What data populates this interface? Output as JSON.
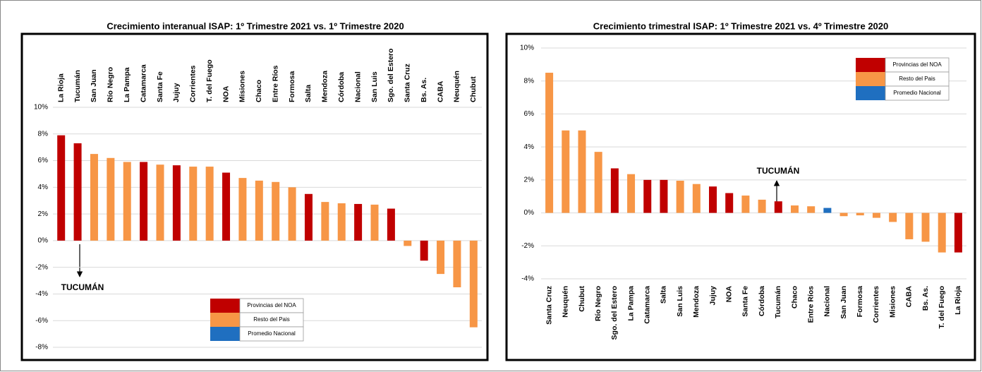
{
  "chart_data": [
    {
      "type": "bar",
      "title": "Crecimiento interanual ISAP: 1º Trimestre 2021 vs. 1º Trimestre 2020",
      "categories": [
        "La Rioja",
        "Tucumán",
        "San Juan",
        "Río Negro",
        "La Pampa",
        "Catamarca",
        "Santa Fe",
        "Jujuy",
        "Corrientes",
        "T. del Fuego",
        "NOA",
        "Misiones",
        "Chaco",
        "Entre Ríos",
        "Formosa",
        "Salta",
        "Mendoza",
        "Córdoba",
        "Nacional",
        "San Luis",
        "Sgo. del Estero",
        "Santa Cruz",
        "Bs. As.",
        "CABA",
        "Neuquén",
        "Chubut"
      ],
      "values": [
        7.9,
        7.3,
        6.5,
        6.2,
        5.9,
        5.9,
        5.7,
        5.65,
        5.55,
        5.55,
        5.1,
        4.7,
        4.5,
        4.4,
        4.0,
        3.5,
        2.9,
        2.8,
        2.75,
        2.7,
        2.4,
        -0.4,
        -1.5,
        -2.5,
        -3.5,
        -6.5
      ],
      "colors": [
        "#c00000",
        "#c00000",
        "#f79646",
        "#f79646",
        "#f79646",
        "#c00000",
        "#f79646",
        "#c00000",
        "#f79646",
        "#f79646",
        "#c00000",
        "#f79646",
        "#f79646",
        "#f79646",
        "#f79646",
        "#c00000",
        "#f79646",
        "#f79646",
        "#c00000",
        "#f79646",
        "#c00000",
        "#f79646",
        "#c00000",
        "#f79646",
        "#f79646",
        "#f79646"
      ],
      "ylim": [
        -8,
        10
      ],
      "yticks": [
        {
          "value": -8,
          "label": "-8%"
        },
        {
          "value": -6,
          "label": "-6%"
        },
        {
          "value": -4,
          "label": "-4%"
        },
        {
          "value": -2,
          "label": "-2%"
        },
        {
          "value": 0,
          "label": "0%"
        },
        {
          "value": 2,
          "label": "2%"
        },
        {
          "value": 4,
          "label": "4%"
        },
        {
          "value": 6,
          "label": "6%"
        },
        {
          "value": 8,
          "label": "8%"
        },
        {
          "value": 10,
          "label": "10%"
        }
      ],
      "grid": true,
      "category_label_position": "top",
      "legend_position": "bottom-center",
      "legend": [
        {
          "name": "Provincias del NOA",
          "color": "#c00000"
        },
        {
          "name": "Resto del Pais",
          "color": "#f79646"
        },
        {
          "name": "Promedio Nacional",
          "color": "#1f6fc0"
        }
      ],
      "annotation": "TUCUMÁN"
    },
    {
      "type": "bar",
      "title": "Crecimiento trimestral ISAP: 1º Trimestre 2021 vs. 4º Trimestre 2020",
      "categories": [
        "Santa Cruz",
        "Neuquén",
        "Chubut",
        "Río Negro",
        "Sgo. del Estero",
        "La Pampa",
        "Catamarca",
        "Salta",
        "San Luis",
        "Mendoza",
        "Jujuy",
        "NOA",
        "Santa Fe",
        "Córdoba",
        "Tucumán",
        "Chaco",
        "Entre Ríos",
        "Nacional",
        "San Juan",
        "Formosa",
        "Corrientes",
        "Misiones",
        "CABA",
        "Bs. As.",
        "T. del Fuego",
        "La Rioja"
      ],
      "values": [
        8.5,
        5.0,
        5.0,
        3.7,
        2.7,
        2.35,
        2.0,
        2.0,
        1.95,
        1.75,
        1.6,
        1.2,
        1.05,
        0.8,
        0.7,
        0.45,
        0.4,
        0.3,
        -0.2,
        -0.15,
        -0.3,
        -0.55,
        -1.6,
        -1.75,
        -2.4,
        -2.4
      ],
      "colors": [
        "#f79646",
        "#f79646",
        "#f79646",
        "#f79646",
        "#c00000",
        "#f79646",
        "#c00000",
        "#c00000",
        "#f79646",
        "#f79646",
        "#c00000",
        "#c00000",
        "#f79646",
        "#f79646",
        "#c00000",
        "#f79646",
        "#f79646",
        "#1f6fc0",
        "#f79646",
        "#f79646",
        "#f79646",
        "#f79646",
        "#f79646",
        "#f79646",
        "#f79646",
        "#c00000"
      ],
      "ylim": [
        -4,
        10
      ],
      "yticks": [
        {
          "value": -4,
          "label": "-4%"
        },
        {
          "value": -2,
          "label": "-2%"
        },
        {
          "value": 0,
          "label": "0%"
        },
        {
          "value": 2,
          "label": "2%"
        },
        {
          "value": 4,
          "label": "4%"
        },
        {
          "value": 6,
          "label": "6%"
        },
        {
          "value": 8,
          "label": "8%"
        },
        {
          "value": 10,
          "label": "10%"
        }
      ],
      "grid": true,
      "category_label_position": "bottom",
      "legend_position": "top-right",
      "legend": [
        {
          "name": "Provincias del NOA",
          "color": "#c00000"
        },
        {
          "name": "Resto del Pais",
          "color": "#f79646"
        },
        {
          "name": "Promedio Nacional",
          "color": "#1f6fc0"
        }
      ],
      "annotation": "TUCUMÁN"
    }
  ]
}
